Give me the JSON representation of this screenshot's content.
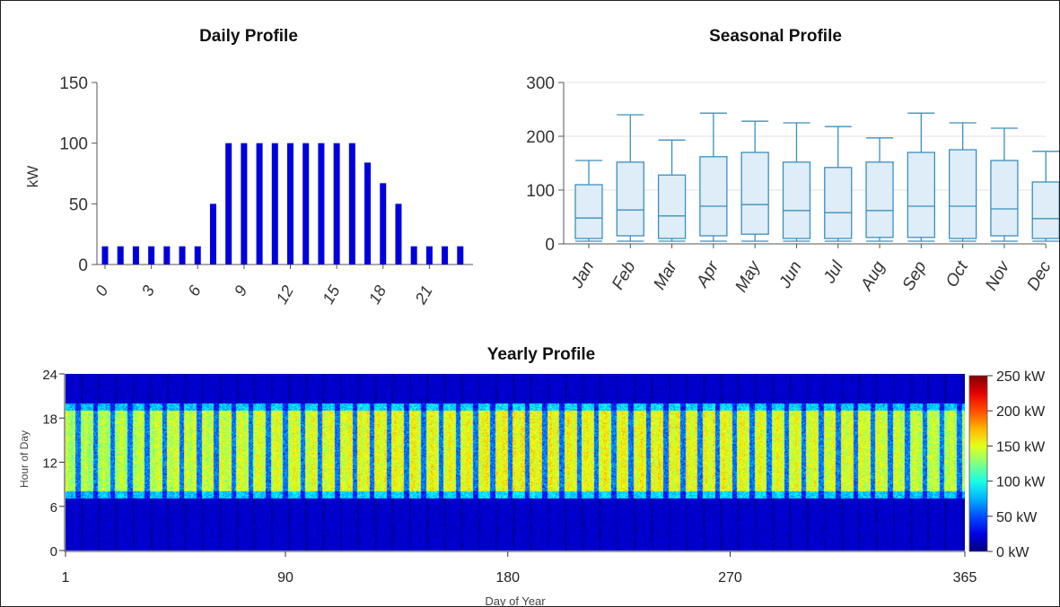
{
  "chart_data": [
    {
      "type": "bar",
      "title": "Daily Profile",
      "ylabel": "kW",
      "xlabel": "",
      "ylim": [
        0,
        150
      ],
      "yticks": [
        0,
        50,
        100,
        150
      ],
      "xtick_labels": [
        "0",
        "3",
        "6",
        "9",
        "12",
        "15",
        "18",
        "21"
      ],
      "categories": [
        0,
        1,
        2,
        3,
        4,
        5,
        6,
        7,
        8,
        9,
        10,
        11,
        12,
        13,
        14,
        15,
        16,
        17,
        18,
        19,
        20,
        21,
        22,
        23
      ],
      "values": [
        15,
        15,
        15,
        15,
        15,
        15,
        15,
        50,
        100,
        100,
        100,
        100,
        100,
        100,
        100,
        100,
        100,
        84,
        67,
        50,
        15,
        15,
        15,
        15
      ],
      "bar_color": "#0000dd"
    },
    {
      "type": "box",
      "title": "Seasonal Profile",
      "ylabel": "kW",
      "xlabel": "",
      "ylim": [
        0,
        300
      ],
      "yticks": [
        0,
        100,
        200,
        300
      ],
      "categories": [
        "Jan",
        "Feb",
        "Mar",
        "Apr",
        "May",
        "Jun",
        "Jul",
        "Aug",
        "Sep",
        "Oct",
        "Nov",
        "Dec"
      ],
      "boxes": [
        {
          "min": 5,
          "q1": 10,
          "median": 48,
          "q3": 110,
          "max": 155
        },
        {
          "min": 5,
          "q1": 15,
          "median": 63,
          "q3": 152,
          "max": 240
        },
        {
          "min": 5,
          "q1": 10,
          "median": 52,
          "q3": 128,
          "max": 193
        },
        {
          "min": 5,
          "q1": 15,
          "median": 70,
          "q3": 162,
          "max": 243
        },
        {
          "min": 5,
          "q1": 18,
          "median": 73,
          "q3": 170,
          "max": 228
        },
        {
          "min": 5,
          "q1": 10,
          "median": 62,
          "q3": 152,
          "max": 225
        },
        {
          "min": 5,
          "q1": 10,
          "median": 58,
          "q3": 142,
          "max": 218
        },
        {
          "min": 5,
          "q1": 12,
          "median": 62,
          "q3": 152,
          "max": 197
        },
        {
          "min": 5,
          "q1": 12,
          "median": 70,
          "q3": 170,
          "max": 243
        },
        {
          "min": 5,
          "q1": 10,
          "median": 70,
          "q3": 175,
          "max": 225
        },
        {
          "min": 5,
          "q1": 15,
          "median": 65,
          "q3": 155,
          "max": 215
        },
        {
          "min": 5,
          "q1": 10,
          "median": 47,
          "q3": 115,
          "max": 172
        }
      ],
      "box_fill": "#deedf7",
      "box_stroke": "#3b8fbf"
    },
    {
      "type": "heatmap",
      "title": "Yearly Profile",
      "xlabel": "Day of Year",
      "ylabel": "Hour of Day",
      "xlim": [
        1,
        365
      ],
      "ylim": [
        0,
        24
      ],
      "xticks": [
        1,
        90,
        180,
        270,
        365
      ],
      "yticks": [
        0,
        6,
        12,
        18,
        24
      ],
      "colorbar": {
        "range": [
          0,
          250
        ],
        "tick_labels": [
          "0 kW",
          "50 kW",
          "100 kW",
          "150 kW",
          "200 kW",
          "250 kW"
        ]
      },
      "pattern": {
        "night_level_kw": 15,
        "day_start_hour": 7,
        "day_end_hour": 20,
        "day_level_kw": [
          90,
          170
        ],
        "weekend_level_kw": 60,
        "week_period_days": 7
      }
    }
  ]
}
